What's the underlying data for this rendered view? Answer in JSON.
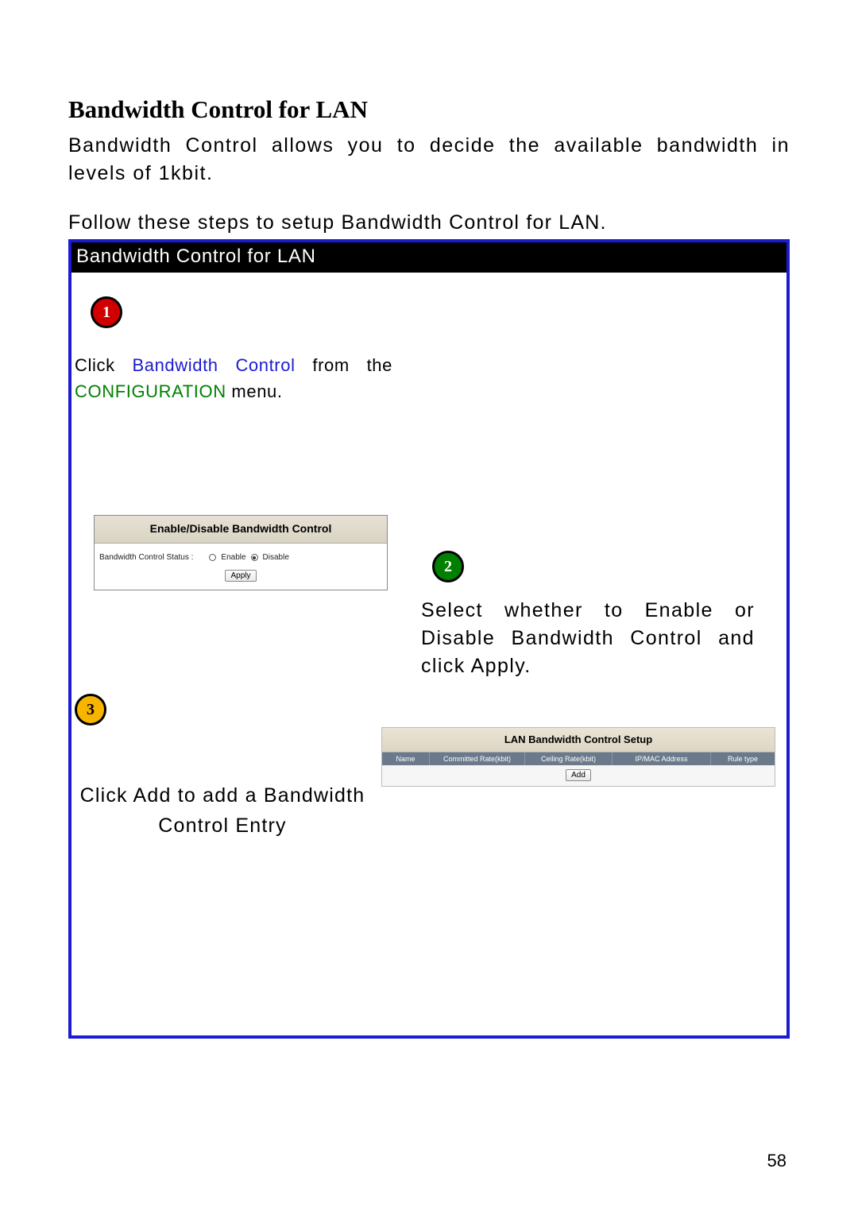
{
  "title": "Bandwidth Control for LAN",
  "intro": "Bandwidth Control allows you to decide the available bandwidth in levels of 1kbit.",
  "follow": "Follow these steps to setup Bandwidth Control for LAN.",
  "box_header": "Bandwidth Control for LAN",
  "step1": {
    "badge": "1",
    "click": "Click",
    "bandwidth": "Bandwidth",
    "control": "Control",
    "from": "from",
    "the": "the",
    "config": "CONFIGURATION",
    "menu": " menu."
  },
  "panel1": {
    "header": "Enable/Disable Bandwidth Control",
    "label": "Bandwidth Control Status :",
    "enable": "Enable",
    "disable": "Disable",
    "apply": "Apply"
  },
  "step2": {
    "badge": "2",
    "text": "Select whether to Enable or Disable Bandwidth Control and click Apply."
  },
  "step3": {
    "badge": "3",
    "text": "Click Add to add a Bandwidth Control Entry"
  },
  "panel2": {
    "header": "LAN Bandwidth Control Setup",
    "cols": {
      "name": "Name",
      "committed": "Committed Rate(kbit)",
      "ceiling": "Ceiling Rate(kbit)",
      "mac": "IP/MAC Address",
      "rule": "Rule type"
    },
    "add": "Add"
  },
  "page_number": "58",
  "colors": {
    "border_blue": "#1b1bd1",
    "link_blue": "#1b1bd1",
    "green": "#008000",
    "badge_red": "#d10000",
    "badge_green": "#008000",
    "badge_yellow": "#f7b500",
    "panel_header_grad_top": "#e7e2d6",
    "panel_header_grad_bot": "#d9d3c2",
    "table_head_bg": "#6b7a8a"
  }
}
